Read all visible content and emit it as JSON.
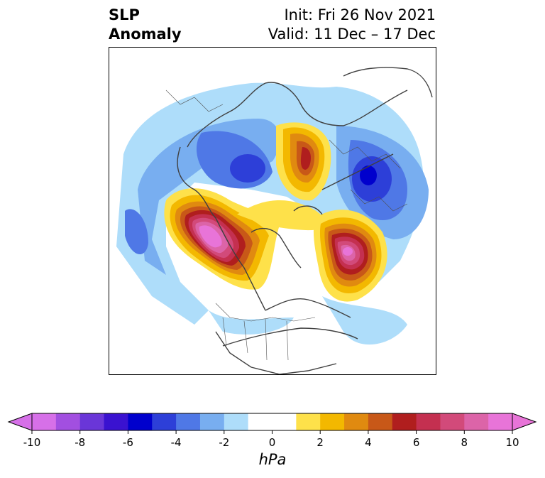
{
  "header": {
    "title_line1": "SLP",
    "title_line2": "Anomaly",
    "init_text": "Init: Fri 26 Nov 2021",
    "valid_text": "Valid: 11 Dec – 17 Dec"
  },
  "colorbar": {
    "unit": "hPa",
    "tick_labels": [
      "-10",
      "-8",
      "-6",
      "-4",
      "-2",
      "0",
      "2",
      "4",
      "6",
      "8",
      "10"
    ],
    "colors": [
      "#d670e8",
      "#a24fe0",
      "#6a36d8",
      "#3a12d0",
      "#0000cd",
      "#2d3fd8",
      "#4f78e6",
      "#78aef0",
      "#aeddfa",
      "#ffffff",
      "#ffffff",
      "#fee14a",
      "#f3b800",
      "#e08a10",
      "#c85818",
      "#b01e1e",
      "#c43050",
      "#d24a7a",
      "#dc64a8",
      "#e874d8"
    ]
  },
  "map": {
    "projection": "north-polar-stereographic",
    "field": "SLP anomaly",
    "features": [
      {
        "name": "alaska-high",
        "sign": "positive",
        "peak": 10
      },
      {
        "name": "north-atlantic-high",
        "sign": "positive",
        "peak": 9
      },
      {
        "name": "siberia-high",
        "sign": "positive",
        "peak": 6
      },
      {
        "name": "eastern-siberia-low",
        "sign": "negative",
        "peak": -5
      },
      {
        "name": "ural-low",
        "sign": "negative",
        "peak": -7
      },
      {
        "name": "north-pacific-low",
        "sign": "negative",
        "peak": -3
      }
    ]
  }
}
